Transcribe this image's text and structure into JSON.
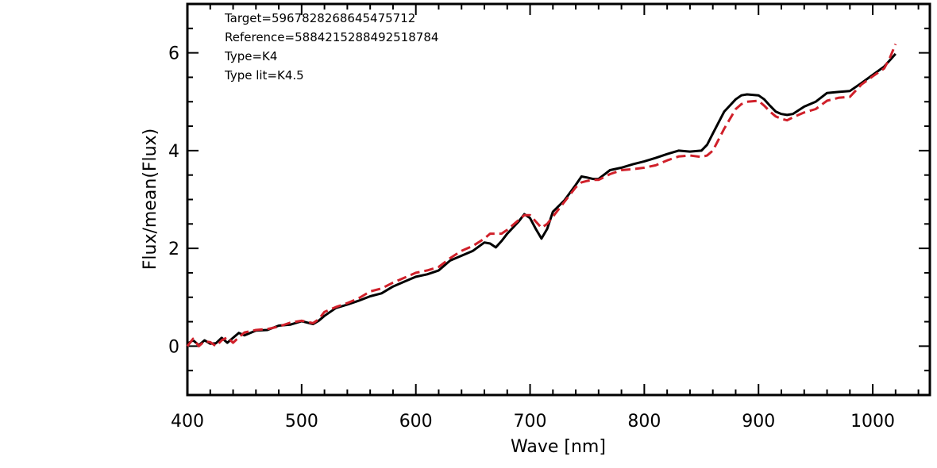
{
  "chart_data": {
    "type": "line",
    "title": "",
    "xlabel": "Wave [nm]",
    "ylabel": "Flux/mean(Flux)",
    "xlim": [
      400,
      1050
    ],
    "ylim": [
      -1,
      7
    ],
    "xticks": [
      400,
      500,
      600,
      700,
      800,
      900,
      1000
    ],
    "yticks": [
      0,
      2,
      4,
      6
    ],
    "grid": false,
    "legend": "none",
    "annotations": [
      "Target=5967828268645475712",
      "Reference=5884215288492518784",
      "Type=K4",
      "Type lit=K4.5"
    ],
    "series": [
      {
        "style": "solid",
        "color": "#000000",
        "x": [
          400,
          405,
          410,
          415,
          420,
          425,
          430,
          435,
          440,
          445,
          450,
          460,
          470,
          480,
          490,
          500,
          510,
          515,
          520,
          530,
          540,
          550,
          560,
          570,
          580,
          590,
          600,
          610,
          620,
          630,
          640,
          650,
          660,
          665,
          670,
          675,
          680,
          690,
          695,
          700,
          705,
          710,
          715,
          720,
          730,
          740,
          745,
          750,
          755,
          760,
          770,
          780,
          790,
          800,
          810,
          820,
          830,
          840,
          850,
          855,
          860,
          870,
          880,
          885,
          890,
          900,
          905,
          910,
          915,
          920,
          925,
          930,
          940,
          950,
          960,
          970,
          980,
          990,
          1000,
          1010,
          1015,
          1020
        ],
        "y": [
          0.05,
          0.12,
          0.02,
          0.12,
          0.05,
          0.06,
          0.17,
          0.07,
          0.17,
          0.27,
          0.22,
          0.32,
          0.33,
          0.42,
          0.44,
          0.51,
          0.45,
          0.52,
          0.62,
          0.78,
          0.85,
          0.93,
          1.02,
          1.08,
          1.22,
          1.32,
          1.42,
          1.47,
          1.55,
          1.75,
          1.85,
          1.95,
          2.12,
          2.1,
          2.02,
          2.15,
          2.3,
          2.55,
          2.7,
          2.62,
          2.4,
          2.2,
          2.4,
          2.75,
          2.98,
          3.3,
          3.47,
          3.45,
          3.42,
          3.42,
          3.6,
          3.65,
          3.72,
          3.78,
          3.85,
          3.93,
          4.0,
          3.98,
          4.0,
          4.12,
          4.35,
          4.8,
          5.05,
          5.13,
          5.15,
          5.13,
          5.05,
          4.92,
          4.8,
          4.75,
          4.73,
          4.75,
          4.9,
          5.0,
          5.18,
          5.2,
          5.22,
          5.38,
          5.55,
          5.72,
          5.85,
          5.98
        ]
      },
      {
        "style": "dashed",
        "color": "#d0202a",
        "x": [
          400,
          405,
          410,
          415,
          420,
          425,
          430,
          435,
          440,
          445,
          450,
          460,
          470,
          480,
          490,
          500,
          510,
          515,
          520,
          530,
          540,
          550,
          560,
          570,
          580,
          590,
          600,
          610,
          620,
          630,
          640,
          650,
          660,
          665,
          670,
          675,
          680,
          690,
          695,
          700,
          705,
          710,
          715,
          720,
          730,
          740,
          745,
          750,
          755,
          760,
          770,
          780,
          790,
          800,
          810,
          820,
          830,
          840,
          850,
          855,
          860,
          870,
          880,
          885,
          890,
          900,
          905,
          910,
          915,
          920,
          925,
          930,
          940,
          950,
          960,
          970,
          980,
          990,
          1000,
          1010,
          1015,
          1020
        ],
        "y": [
          0.0,
          0.15,
          0.0,
          0.1,
          0.08,
          0.0,
          0.12,
          0.18,
          0.07,
          0.18,
          0.28,
          0.33,
          0.35,
          0.4,
          0.48,
          0.52,
          0.47,
          0.55,
          0.7,
          0.8,
          0.88,
          0.98,
          1.12,
          1.18,
          1.3,
          1.4,
          1.5,
          1.55,
          1.62,
          1.8,
          1.95,
          2.05,
          2.2,
          2.3,
          2.3,
          2.3,
          2.38,
          2.58,
          2.68,
          2.68,
          2.55,
          2.42,
          2.5,
          2.65,
          2.95,
          3.25,
          3.35,
          3.38,
          3.4,
          3.4,
          3.52,
          3.6,
          3.62,
          3.65,
          3.7,
          3.8,
          3.88,
          3.9,
          3.87,
          3.9,
          4.0,
          4.45,
          4.85,
          4.95,
          5.0,
          5.02,
          4.92,
          4.8,
          4.7,
          4.65,
          4.62,
          4.68,
          4.78,
          4.85,
          5.02,
          5.08,
          5.1,
          5.35,
          5.52,
          5.68,
          5.9,
          6.18
        ]
      }
    ]
  }
}
